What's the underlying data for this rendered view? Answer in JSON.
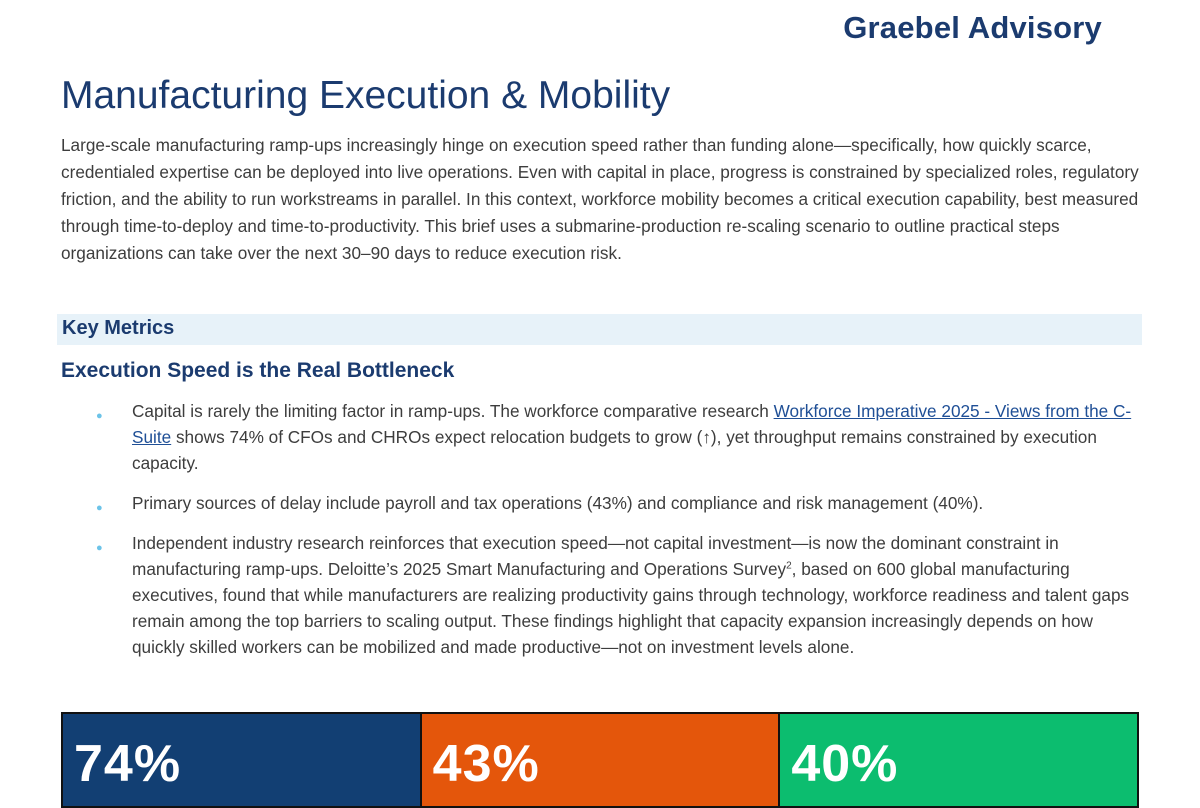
{
  "header": {
    "brand": "Graebel Advisory"
  },
  "document": {
    "title": "Manufacturing Execution & Mobility",
    "intro": "Large-scale manufacturing ramp-ups increasingly hinge on execution speed rather than funding alone—specifically, how quickly scarce, credentialed expertise can be deployed into live operations. Even with capital in place, progress is constrained by specialized roles, regulatory friction, and the ability to run workstreams in parallel. In this context, workforce mobility becomes a critical execution capability, best measured through time-to-deploy and time-to-productivity. This brief uses a submarine-production re-scaling scenario to outline practical steps organizations can take over the next 30–90 days to reduce execution risk.",
    "section_heading": "Key Metrics",
    "subheading": "Execution Speed is the Real Bottleneck",
    "bullets": [
      {
        "before_link": "Capital is rarely the limiting factor in ramp-ups. The workforce comparative research ",
        "link": "Workforce Imperative 2025 - Views from the C-Suite",
        "after_link": " shows 74% of CFOs and CHROs expect relocation budgets to grow (↑), yet throughput remains constrained by execution capacity."
      },
      {
        "text": "Primary sources of delay include payroll and tax operations (43%) and compliance and risk management (40%)."
      },
      {
        "before_sup": "Independent industry research reinforces that execution speed—not capital investment—is now the dominant constraint in manufacturing ramp-ups. Deloitte’s 2025 Smart Manufacturing and Operations Survey",
        "sup": "2",
        "after_sup": ", based on 600 global manufacturing executives, found that while manufacturers are realizing productivity gains through technology, workforce readiness and talent gaps remain among the top barriers to scaling output. These findings highlight that capacity expansion increasingly depends on how quickly skilled workers can be mobilized and made productive—not on investment levels alone."
      }
    ]
  },
  "metrics": [
    {
      "value": "74%",
      "color": "#123f73"
    },
    {
      "value": "43%",
      "color": "#e4560b"
    },
    {
      "value": "40%",
      "color": "#0cbd6f"
    }
  ]
}
